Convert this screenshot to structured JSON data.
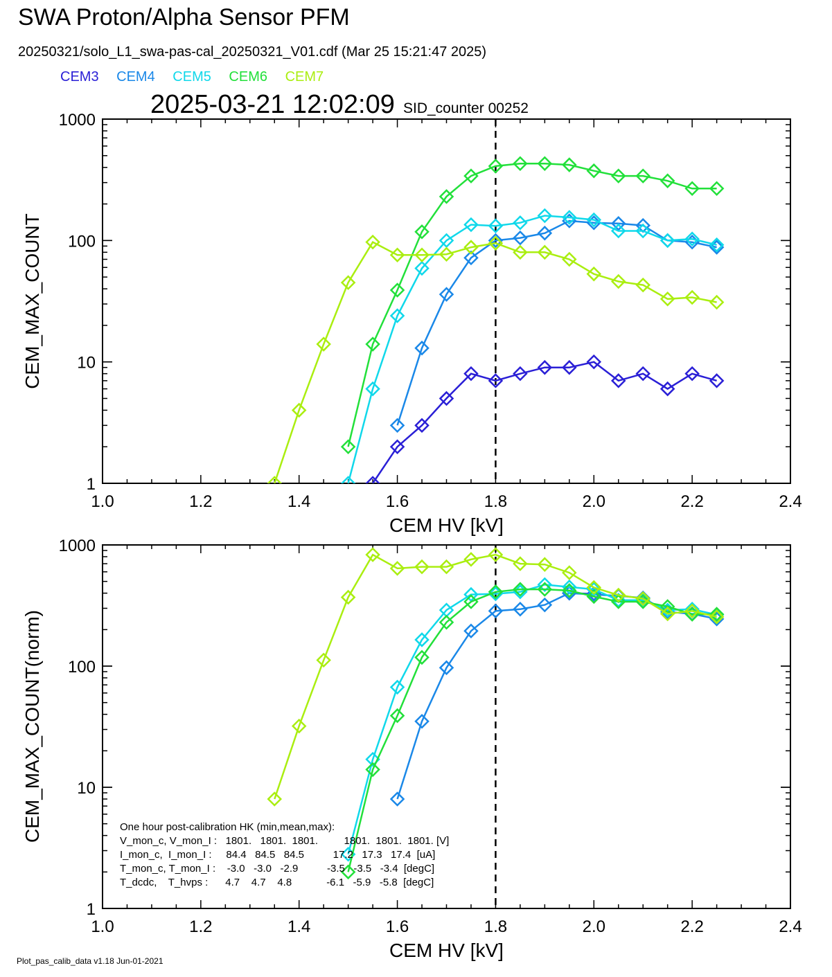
{
  "title": "SWA Proton/Alpha Sensor PFM",
  "subtitle": "20250321/solo_L1_swa-pas-cal_20250321_V01.cdf  (Mar 25 15:21:47 2025)",
  "legend": [
    {
      "label": "CEM3",
      "color": "#2a1fd6"
    },
    {
      "label": "CEM4",
      "color": "#1a88e8"
    },
    {
      "label": "CEM5",
      "color": "#10d8ea"
    },
    {
      "label": "CEM6",
      "color": "#22e03a"
    },
    {
      "label": "CEM7",
      "color": "#aaee10"
    }
  ],
  "datetime": "2025-03-21 12:02:09",
  "sid_counter": "SID_counter 00252",
  "footer": "Plot_pas_calib_data v1.18 Jun-01-2021",
  "hk_table": [
    "One hour post-calibration HK (min,mean,max):",
    "V_mon_c, V_mon_I :   1801.   1801.  1801.         1801.  1801.  1801. [V]",
    "I_mon_c,  I_mon_I :     84.4   84.5   84.5          17.2   17.3   17.4  [uA]",
    "T_mon_c, T_mon_I :    -3.0   -3.0   -2.9          -3.5   -3.5   -3.4  [degC]",
    "T_dcdc,    T_hvps :      4.7    4.7    4.8            -6.1   -5.9   -5.8  [degC]"
  ],
  "chart_data": [
    {
      "type": "line",
      "xlabel": "CEM HV [kV]",
      "ylabel": "CEM_MAX_COUNT",
      "xlim": [
        1.0,
        2.4
      ],
      "ylim": [
        1,
        1000
      ],
      "yscale": "log",
      "x_ticks": [
        "1.0",
        "1.2",
        "1.4",
        "1.6",
        "1.8",
        "2.0",
        "2.2",
        "2.4"
      ],
      "y_ticks": [
        "1",
        "10",
        "100",
        "1000"
      ],
      "vline_x": 1.8,
      "marker": "diamond",
      "series": [
        {
          "name": "CEM3",
          "color": "#2a1fd6",
          "x": [
            1.55,
            1.6,
            1.65,
            1.7,
            1.75,
            1.8,
            1.85,
            1.9,
            1.95,
            2.0,
            2.05,
            2.1,
            2.15,
            2.2,
            2.25
          ],
          "y": [
            1,
            2,
            3,
            5,
            8,
            7,
            8,
            9,
            9,
            10,
            7,
            8,
            6,
            8,
            7
          ]
        },
        {
          "name": "CEM4",
          "color": "#1a88e8",
          "x": [
            1.6,
            1.65,
            1.7,
            1.75,
            1.8,
            1.85,
            1.9,
            1.95,
            2.0,
            2.05,
            2.1,
            2.15,
            2.2,
            2.25
          ],
          "y": [
            3,
            13,
            36,
            72,
            100,
            105,
            115,
            145,
            140,
            138,
            133,
            100,
            97,
            88
          ]
        },
        {
          "name": "CEM5",
          "color": "#10d8ea",
          "x": [
            1.5,
            1.55,
            1.6,
            1.65,
            1.7,
            1.75,
            1.8,
            1.85,
            1.9,
            1.95,
            2.0,
            2.05,
            2.1,
            2.15,
            2.2,
            2.25
          ],
          "y": [
            1,
            6,
            24,
            59,
            100,
            135,
            132,
            140,
            160,
            155,
            148,
            120,
            120,
            100,
            103,
            92
          ]
        },
        {
          "name": "CEM6",
          "color": "#22e03a",
          "x": [
            1.5,
            1.55,
            1.6,
            1.65,
            1.7,
            1.75,
            1.8,
            1.85,
            1.9,
            1.95,
            2.0,
            2.05,
            2.1,
            2.15,
            2.2,
            2.25
          ],
          "y": [
            2,
            14,
            39,
            118,
            230,
            340,
            410,
            430,
            430,
            420,
            375,
            340,
            340,
            310,
            268,
            268
          ]
        },
        {
          "name": "CEM7",
          "color": "#aaee10",
          "x": [
            1.35,
            1.4,
            1.45,
            1.5,
            1.55,
            1.6,
            1.65,
            1.7,
            1.75,
            1.8,
            1.85,
            1.9,
            1.95,
            2.0,
            2.05,
            2.1,
            2.15,
            2.2,
            2.25
          ],
          "y": [
            1,
            4,
            14,
            45,
            97,
            76,
            76,
            77,
            88,
            95,
            80,
            80,
            70,
            53,
            46,
            43,
            33,
            34,
            31
          ]
        }
      ]
    },
    {
      "type": "line",
      "xlabel": "CEM HV [kV]",
      "ylabel": "CEM_MAX_COUNT(norm)",
      "xlim": [
        1.0,
        2.4
      ],
      "ylim": [
        1,
        1000
      ],
      "yscale": "log",
      "x_ticks": [
        "1.0",
        "1.2",
        "1.4",
        "1.6",
        "1.8",
        "2.0",
        "2.2",
        "2.4"
      ],
      "y_ticks": [
        "1",
        "10",
        "100",
        "1000"
      ],
      "vline_x": 1.8,
      "marker": "diamond",
      "series": [
        {
          "name": "CEM3",
          "color": "#2a1fd6",
          "x": [
            1.95,
            2.0
          ],
          "y": [
            400,
            395
          ]
        },
        {
          "name": "CEM4",
          "color": "#1a88e8",
          "x": [
            1.6,
            1.65,
            1.7,
            1.75,
            1.8,
            1.85,
            1.9,
            1.95,
            2.0,
            2.05,
            2.1,
            2.15,
            2.2,
            2.25
          ],
          "y": [
            8,
            35,
            97,
            195,
            285,
            295,
            320,
            400,
            390,
            380,
            365,
            280,
            270,
            245
          ]
        },
        {
          "name": "CEM5",
          "color": "#10d8ea",
          "x": [
            1.5,
            1.55,
            1.6,
            1.65,
            1.7,
            1.75,
            1.8,
            1.85,
            1.9,
            1.95,
            2.0,
            2.05,
            2.1,
            2.15,
            2.2,
            2.25
          ],
          "y": [
            2.8,
            17,
            67,
            165,
            290,
            390,
            395,
            410,
            470,
            450,
            430,
            350,
            350,
            290,
            295,
            265
          ]
        },
        {
          "name": "CEM6",
          "color": "#22e03a",
          "x": [
            1.5,
            1.55,
            1.6,
            1.65,
            1.7,
            1.75,
            1.8,
            1.85,
            1.9,
            1.95,
            2.0,
            2.05,
            2.1,
            2.15,
            2.2,
            2.25
          ],
          "y": [
            2,
            14,
            39,
            118,
            230,
            340,
            410,
            430,
            430,
            420,
            375,
            340,
            340,
            310,
            268,
            268
          ]
        },
        {
          "name": "CEM7",
          "color": "#aaee10",
          "x": [
            1.35,
            1.4,
            1.45,
            1.5,
            1.55,
            1.6,
            1.65,
            1.7,
            1.75,
            1.8,
            1.85,
            1.9,
            1.95,
            2.0,
            2.05,
            2.1,
            2.15,
            2.2,
            2.25
          ],
          "y": [
            8,
            32,
            112,
            370,
            830,
            640,
            660,
            660,
            760,
            830,
            700,
            690,
            590,
            445,
            385,
            360,
            270,
            285,
            255
          ]
        }
      ]
    }
  ]
}
